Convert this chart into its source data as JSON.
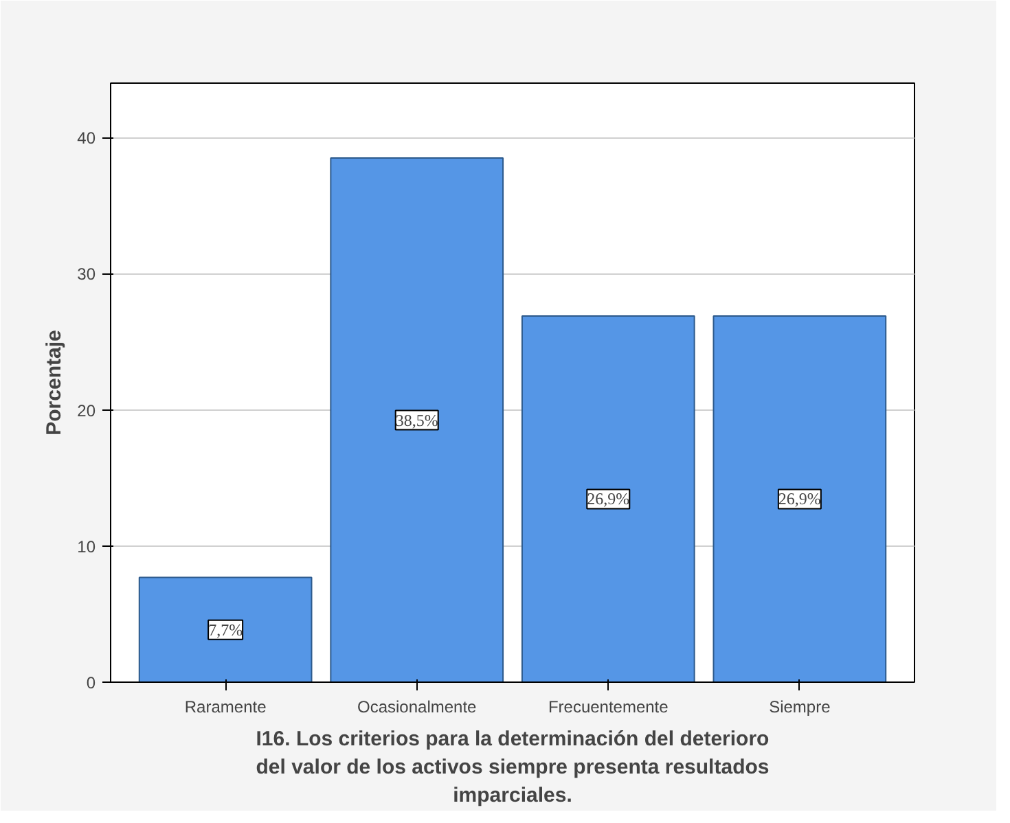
{
  "chart_data": {
    "type": "bar",
    "xlabel": "I16. Los criterios para la determinación del deterioro del valor de los activos siempre presenta resultados imparciales.",
    "ylabel": "Porcentaje",
    "categories": [
      "Raramente",
      "Ocasionalmente",
      "Frecuentemente",
      "Siempre"
    ],
    "values": [
      7.7,
      38.5,
      26.9,
      26.9
    ],
    "value_labels": [
      "7,7%",
      "38,5%",
      "26,9%",
      "26,9%"
    ],
    "color": "#5596e6",
    "ylim": [
      0,
      44
    ],
    "yticks": [
      0,
      10,
      20,
      30,
      40
    ],
    "grid": "y"
  }
}
